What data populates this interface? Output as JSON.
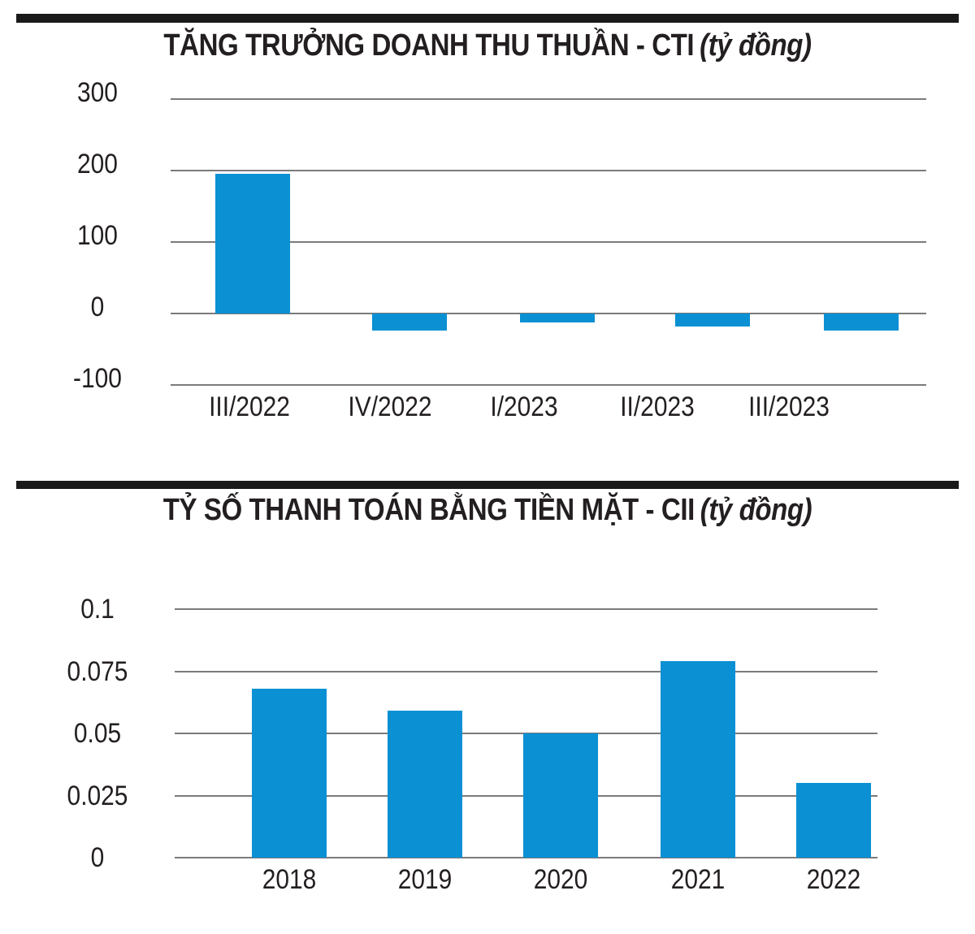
{
  "colors": {
    "accent": "#0a90d3",
    "grid": "#7b7b7b",
    "divider": "#1a1a1a",
    "text": "#231f20"
  },
  "chart_data": [
    {
      "type": "bar",
      "title": "TĂNG TRƯỞNG DOANH THU THUẦN - CTI",
      "title_unit": "(tỷ đồng)",
      "categories": [
        "III/2022",
        "IV/2022",
        "I/2023",
        "II/2023",
        "III/2023"
      ],
      "values": [
        195,
        -24,
        -13,
        -18,
        -24
      ],
      "xlabel": "",
      "ylabel": "",
      "y_ticks": [
        300,
        200,
        100,
        0,
        -100
      ],
      "y_tick_labels": [
        "300",
        "200",
        "100",
        "0",
        "-100"
      ],
      "ylim": [
        -100,
        300
      ],
      "grid": true,
      "legend": "none",
      "bar_color": "#0a90d3"
    },
    {
      "type": "bar",
      "title": "TỶ SỐ THANH TOÁN BẰNG TIỀN MẶT - CII",
      "title_unit": "(tỷ đồng)",
      "categories": [
        "2018",
        "2019",
        "2020",
        "2021",
        "2022"
      ],
      "values": [
        0.068,
        0.059,
        0.05,
        0.079,
        0.03
      ],
      "xlabel": "",
      "ylabel": "",
      "y_ticks": [
        0.1,
        0.075,
        0.05,
        0.025,
        0
      ],
      "y_tick_labels": [
        "0.1",
        "0.075",
        "0.05",
        "0.025",
        "0"
      ],
      "ylim": [
        0,
        0.1
      ],
      "grid": true,
      "legend": "none",
      "bar_color": "#0a90d3"
    }
  ]
}
